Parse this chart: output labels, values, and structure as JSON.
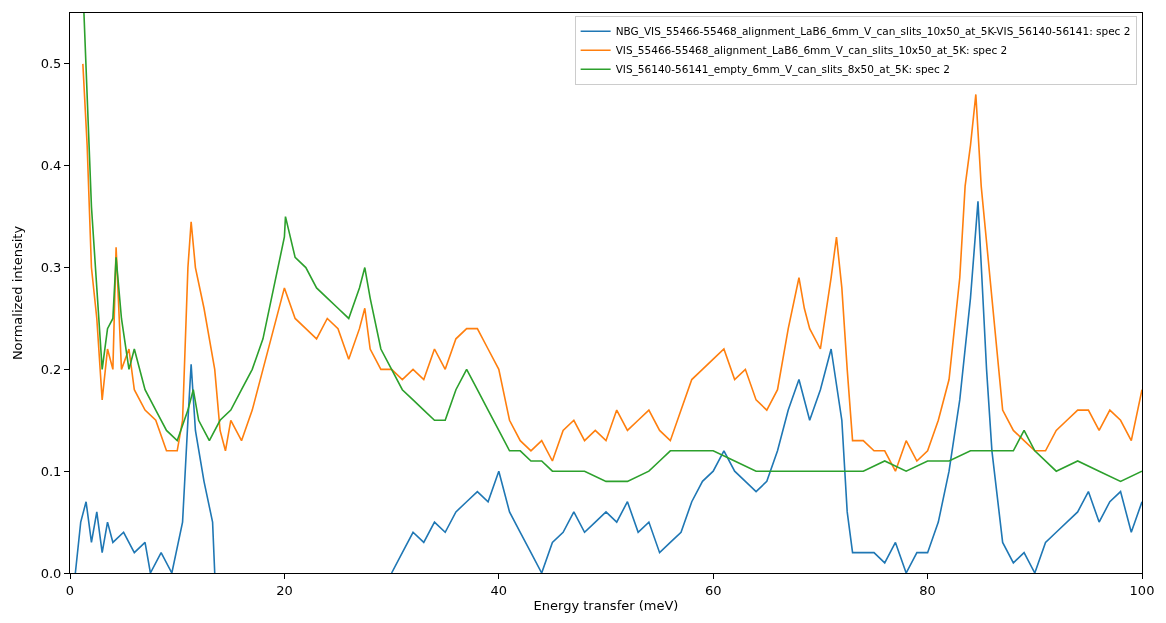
{
  "chart_data": {
    "type": "line",
    "xlabel": "Energy transfer (meV)",
    "ylabel": "Normalized intensity",
    "xlim": [
      0,
      100
    ],
    "ylim": [
      0,
      0.55
    ],
    "xticks": [
      0,
      20,
      40,
      60,
      80,
      100
    ],
    "yticks": [
      {
        "value": 0,
        "label": "0.0"
      },
      {
        "value": 0.1,
        "label": "0.1"
      },
      {
        "value": 0.2,
        "label": "0.2"
      },
      {
        "value": 0.3,
        "label": "0.3"
      },
      {
        "value": 0.4,
        "label": "0.4"
      },
      {
        "value": 0.5,
        "label": "0.5"
      }
    ],
    "legend": "top right",
    "marker": "none",
    "line_style": "solid",
    "series": [
      {
        "name": "NBG_VIS_55466-55468_alignment_LaB6_6mm_V_can_slits_10x50_at_5K-VIS_56140-56141: spec 2",
        "color": "#1f77b4",
        "x": [
          0.5,
          1,
          1.5,
          2,
          2.5,
          3,
          3.5,
          4,
          5,
          6,
          7,
          7.5,
          8.5,
          9.5,
          10.5,
          11,
          11.3,
          11.7,
          12.5,
          13.3,
          13.5,
          20,
          30,
          31,
          32,
          33,
          34,
          35,
          36,
          37,
          38,
          39,
          40,
          41,
          42,
          43,
          44,
          45,
          46,
          47,
          48,
          49,
          50,
          51,
          52,
          53,
          54,
          55,
          56,
          57,
          58,
          59,
          60,
          61,
          62,
          63,
          64,
          65,
          66,
          67,
          68,
          69,
          70,
          71,
          72,
          72.5,
          73,
          75,
          76,
          77,
          78,
          79,
          80,
          81,
          82,
          83,
          84,
          84.7,
          85.5,
          86,
          87,
          88,
          89,
          90,
          91,
          92,
          94,
          95,
          96,
          97,
          98,
          99,
          100
        ],
        "values": [
          0.0,
          0.05,
          0.07,
          0.03,
          0.06,
          0.02,
          0.05,
          0.03,
          0.04,
          0.02,
          0.03,
          0.0,
          0.02,
          0.0,
          0.05,
          0.15,
          0.205,
          0.14,
          0.09,
          0.05,
          0.0,
          null,
          0.0,
          0.02,
          0.04,
          0.03,
          0.05,
          0.04,
          0.06,
          0.07,
          0.08,
          0.07,
          0.1,
          0.06,
          0.04,
          0.02,
          0.0,
          0.03,
          0.04,
          0.06,
          0.04,
          0.05,
          0.06,
          0.05,
          0.07,
          0.04,
          0.05,
          0.02,
          0.03,
          0.04,
          0.07,
          0.09,
          0.1,
          0.12,
          0.1,
          0.09,
          0.08,
          0.09,
          0.12,
          0.16,
          0.19,
          0.15,
          0.18,
          0.22,
          0.15,
          0.06,
          0.02,
          0.02,
          0.01,
          0.03,
          0.0,
          0.02,
          0.02,
          0.05,
          0.1,
          0.17,
          0.27,
          0.365,
          0.2,
          0.12,
          0.03,
          0.01,
          0.02,
          0.0,
          0.03,
          0.04,
          0.06,
          0.08,
          0.05,
          0.07,
          0.08,
          0.04,
          0.07
        ]
      },
      {
        "name": "VIS_55466-55468_alignment_LaB6_6mm_V_can_slits_10x50_at_5K: spec 2",
        "color": "#ff7f0e",
        "x": [
          1.2,
          1.6,
          2,
          2.5,
          3,
          3.5,
          4,
          4.3,
          4.8,
          5.5,
          6,
          7,
          8,
          9,
          10,
          10.5,
          11,
          11.3,
          11.7,
          12.5,
          13.5,
          14,
          14.5,
          15,
          16,
          17,
          18,
          19,
          20,
          21,
          22,
          23,
          24,
          25,
          26,
          27,
          27.5,
          28,
          29,
          30,
          31,
          32,
          33,
          34,
          35,
          36,
          37,
          38,
          39,
          40,
          41,
          42,
          43,
          44,
          45,
          46,
          47,
          48,
          49,
          50,
          51,
          52,
          53,
          54,
          55,
          56,
          57,
          58,
          59,
          60,
          61,
          62,
          63,
          64,
          65,
          66,
          67,
          68,
          68.5,
          69,
          70,
          71,
          71.5,
          72,
          72.5,
          73,
          74,
          75,
          76,
          77,
          78,
          79,
          80,
          81,
          82,
          83,
          83.5,
          84,
          84.5,
          85,
          86,
          87,
          88,
          89,
          90,
          91,
          92,
          93,
          94,
          95,
          96,
          97,
          98,
          99,
          100
        ],
        "values": [
          0.5,
          0.42,
          0.3,
          0.25,
          0.17,
          0.22,
          0.2,
          0.32,
          0.2,
          0.22,
          0.18,
          0.16,
          0.15,
          0.12,
          0.12,
          0.15,
          0.3,
          0.345,
          0.3,
          0.26,
          0.2,
          0.14,
          0.12,
          0.15,
          0.13,
          0.16,
          0.2,
          0.24,
          0.28,
          0.25,
          0.24,
          0.23,
          0.25,
          0.24,
          0.21,
          0.24,
          0.26,
          0.22,
          0.2,
          0.2,
          0.19,
          0.2,
          0.19,
          0.22,
          0.2,
          0.23,
          0.24,
          0.24,
          0.22,
          0.2,
          0.15,
          0.13,
          0.12,
          0.13,
          0.11,
          0.14,
          0.15,
          0.13,
          0.14,
          0.13,
          0.16,
          0.14,
          0.15,
          0.16,
          0.14,
          0.13,
          0.16,
          0.19,
          0.2,
          0.21,
          0.22,
          0.19,
          0.2,
          0.17,
          0.16,
          0.18,
          0.24,
          0.29,
          0.26,
          0.24,
          0.22,
          0.29,
          0.33,
          0.28,
          0.2,
          0.13,
          0.13,
          0.12,
          0.12,
          0.1,
          0.13,
          0.11,
          0.12,
          0.15,
          0.19,
          0.29,
          0.38,
          0.42,
          0.47,
          0.38,
          0.27,
          0.16,
          0.14,
          0.13,
          0.12,
          0.12,
          0.14,
          0.15,
          0.16,
          0.16,
          0.14,
          0.16,
          0.15,
          0.13,
          0.18
        ]
      },
      {
        "name": "VIS_56140-56141_empty_6mm_V_can_slits_8x50_at_5K: spec 2",
        "color": "#2ca02c",
        "x": [
          1.3,
          2,
          2.5,
          3,
          3.5,
          4,
          4.3,
          4.8,
          5.5,
          6,
          7,
          8,
          9,
          10,
          11,
          11.5,
          12,
          13,
          14,
          15,
          16,
          17,
          18,
          19,
          20,
          20.1,
          21,
          22,
          23,
          24,
          25,
          26,
          27,
          27.5,
          28,
          29,
          30,
          31,
          32,
          33,
          34,
          35,
          36,
          37,
          38,
          39,
          40,
          41,
          42,
          43,
          44,
          45,
          46,
          48,
          50,
          52,
          54,
          55,
          56,
          58,
          60,
          62,
          64,
          66,
          68,
          70,
          72,
          74,
          76,
          78,
          80,
          82,
          84,
          86,
          88,
          89,
          90,
          92,
          94,
          96,
          98,
          100
        ],
        "values": [
          0.55,
          0.36,
          0.28,
          0.2,
          0.24,
          0.25,
          0.31,
          0.25,
          0.2,
          0.22,
          0.18,
          0.16,
          0.14,
          0.13,
          0.16,
          0.18,
          0.15,
          0.13,
          0.15,
          0.16,
          0.18,
          0.2,
          0.23,
          0.28,
          0.33,
          0.35,
          0.31,
          0.3,
          0.28,
          0.27,
          0.26,
          0.25,
          0.28,
          0.3,
          0.27,
          0.22,
          0.2,
          0.18,
          0.17,
          0.16,
          0.15,
          0.15,
          0.18,
          0.2,
          0.18,
          0.16,
          0.14,
          0.12,
          0.12,
          0.11,
          0.11,
          0.1,
          0.1,
          0.1,
          0.09,
          0.09,
          0.1,
          0.11,
          0.12,
          0.12,
          0.12,
          0.11,
          0.1,
          0.1,
          0.1,
          0.1,
          0.1,
          0.1,
          0.11,
          0.1,
          0.11,
          0.11,
          0.12,
          0.12,
          0.12,
          0.14,
          0.12,
          0.1,
          0.11,
          0.1,
          0.09,
          0.1
        ]
      }
    ]
  }
}
